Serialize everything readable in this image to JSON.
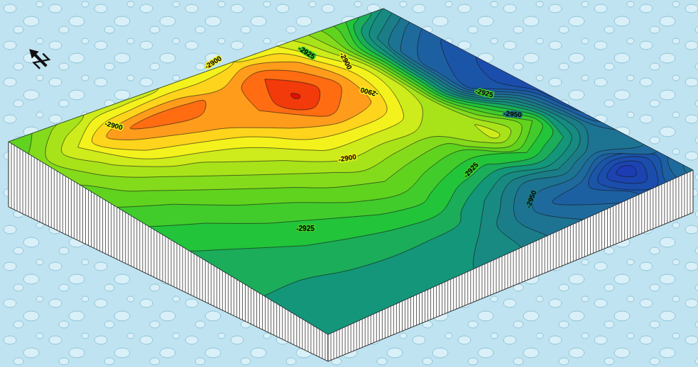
{
  "chart_data": {
    "type": "contour",
    "levels": [
      -2990,
      -2985,
      -2980,
      -2975,
      -2970,
      -2965,
      -2960,
      -2955,
      -2950,
      -2945,
      -2940,
      -2935,
      -2930,
      -2925,
      -2920,
      -2915,
      -2910,
      -2905,
      -2900,
      -2895,
      -2890,
      -2885,
      -2880,
      -2875
    ],
    "z": [
      [
        -2940,
        -2958,
        -2966,
        -2970,
        -2973,
        -2972,
        -2968,
        -2960,
        -2950,
        -2962,
        -2952
      ],
      [
        -2925,
        -2945,
        -2958,
        -2963,
        -2966,
        -2935,
        -2920,
        -2935,
        -2955,
        -2985,
        -2970
      ],
      [
        -2910,
        -2908,
        -2902,
        -2905,
        -2908,
        -2906,
        -2903,
        -2925,
        -2945,
        -2965,
        -2960
      ],
      [
        -2898,
        -2888,
        -2884,
        -2888,
        -2898,
        -2908,
        -2920,
        -2932,
        -2950,
        -2960,
        -2955
      ],
      [
        -2895,
        -2880,
        -2874,
        -2884,
        -2897,
        -2908,
        -2918,
        -2928,
        -2940,
        -2950,
        -2950
      ],
      [
        -2898,
        -2888,
        -2885,
        -2890,
        -2898,
        -2907,
        -2915,
        -2923,
        -2932,
        -2940,
        -2943
      ],
      [
        -2900,
        -2883,
        -2888,
        -2898,
        -2905,
        -2912,
        -2918,
        -2925,
        -2932,
        -2938,
        -2940
      ],
      [
        -2903,
        -2882,
        -2892,
        -2903,
        -2910,
        -2917,
        -2923,
        -2928,
        -2933,
        -2937,
        -2938
      ],
      [
        -2905,
        -2887,
        -2896,
        -2908,
        -2915,
        -2921,
        -2926,
        -2930,
        -2934,
        -2937,
        -2938
      ],
      [
        -2912,
        -2900,
        -2906,
        -2913,
        -2920,
        -2925,
        -2929,
        -2932,
        -2935,
        -2937,
        -2938
      ],
      [
        -2920,
        -2912,
        -2914,
        -2918,
        -2923,
        -2928,
        -2931,
        -2933,
        -2935,
        -2936,
        -2937
      ]
    ],
    "color_stops": {
      "values": [
        -2985,
        -2970,
        -2960,
        -2950,
        -2940,
        -2930,
        -2920,
        -2910,
        -2900,
        -2895,
        -2890,
        -2885,
        -2880,
        -2875
      ],
      "colors": [
        "#1c3cb4",
        "#1b55a8",
        "#1f6a9c",
        "#1b7d88",
        "#14967a",
        "#22c43a",
        "#60d31e",
        "#a8e31a",
        "#f4f21c",
        "#ffd41c",
        "#ff9c1c",
        "#ff6c12",
        "#f23a0a",
        "#e0100a"
      ]
    },
    "contour_labels": [
      -2900,
      -2925,
      -2900,
      -2900,
      -2925,
      -2950,
      -2900,
      -2900,
      -2925,
      -2950,
      -2925
    ]
  }
}
